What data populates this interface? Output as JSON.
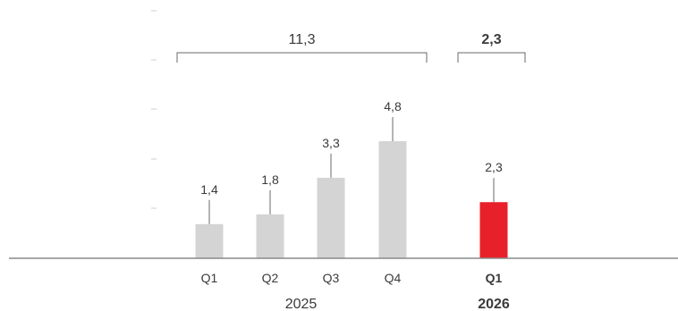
{
  "chart_data": {
    "type": "bar",
    "categories": [
      "Q1",
      "Q2",
      "Q3",
      "Q4",
      "Q1"
    ],
    "values": [
      1.4,
      1.8,
      3.3,
      4.8,
      2.3
    ],
    "value_labels": [
      "1,4",
      "1,8",
      "3,3",
      "4,8",
      "2,3"
    ],
    "groups": [
      {
        "label": "2025",
        "total_label": "11,3",
        "indices": [
          0,
          1,
          2,
          3
        ],
        "bold": false
      },
      {
        "label": "2026",
        "total_label": "2,3",
        "indices": [
          4
        ],
        "bold": true
      }
    ],
    "ylim": [
      0,
      7
    ],
    "grid": false,
    "bar_colors": [
      "#d4d4d4",
      "#d4d4d4",
      "#d4d4d4",
      "#d4d4d4",
      "#e8202a"
    ],
    "axis_color": "#8a8a8a",
    "text_color": "#3a3a3a"
  }
}
